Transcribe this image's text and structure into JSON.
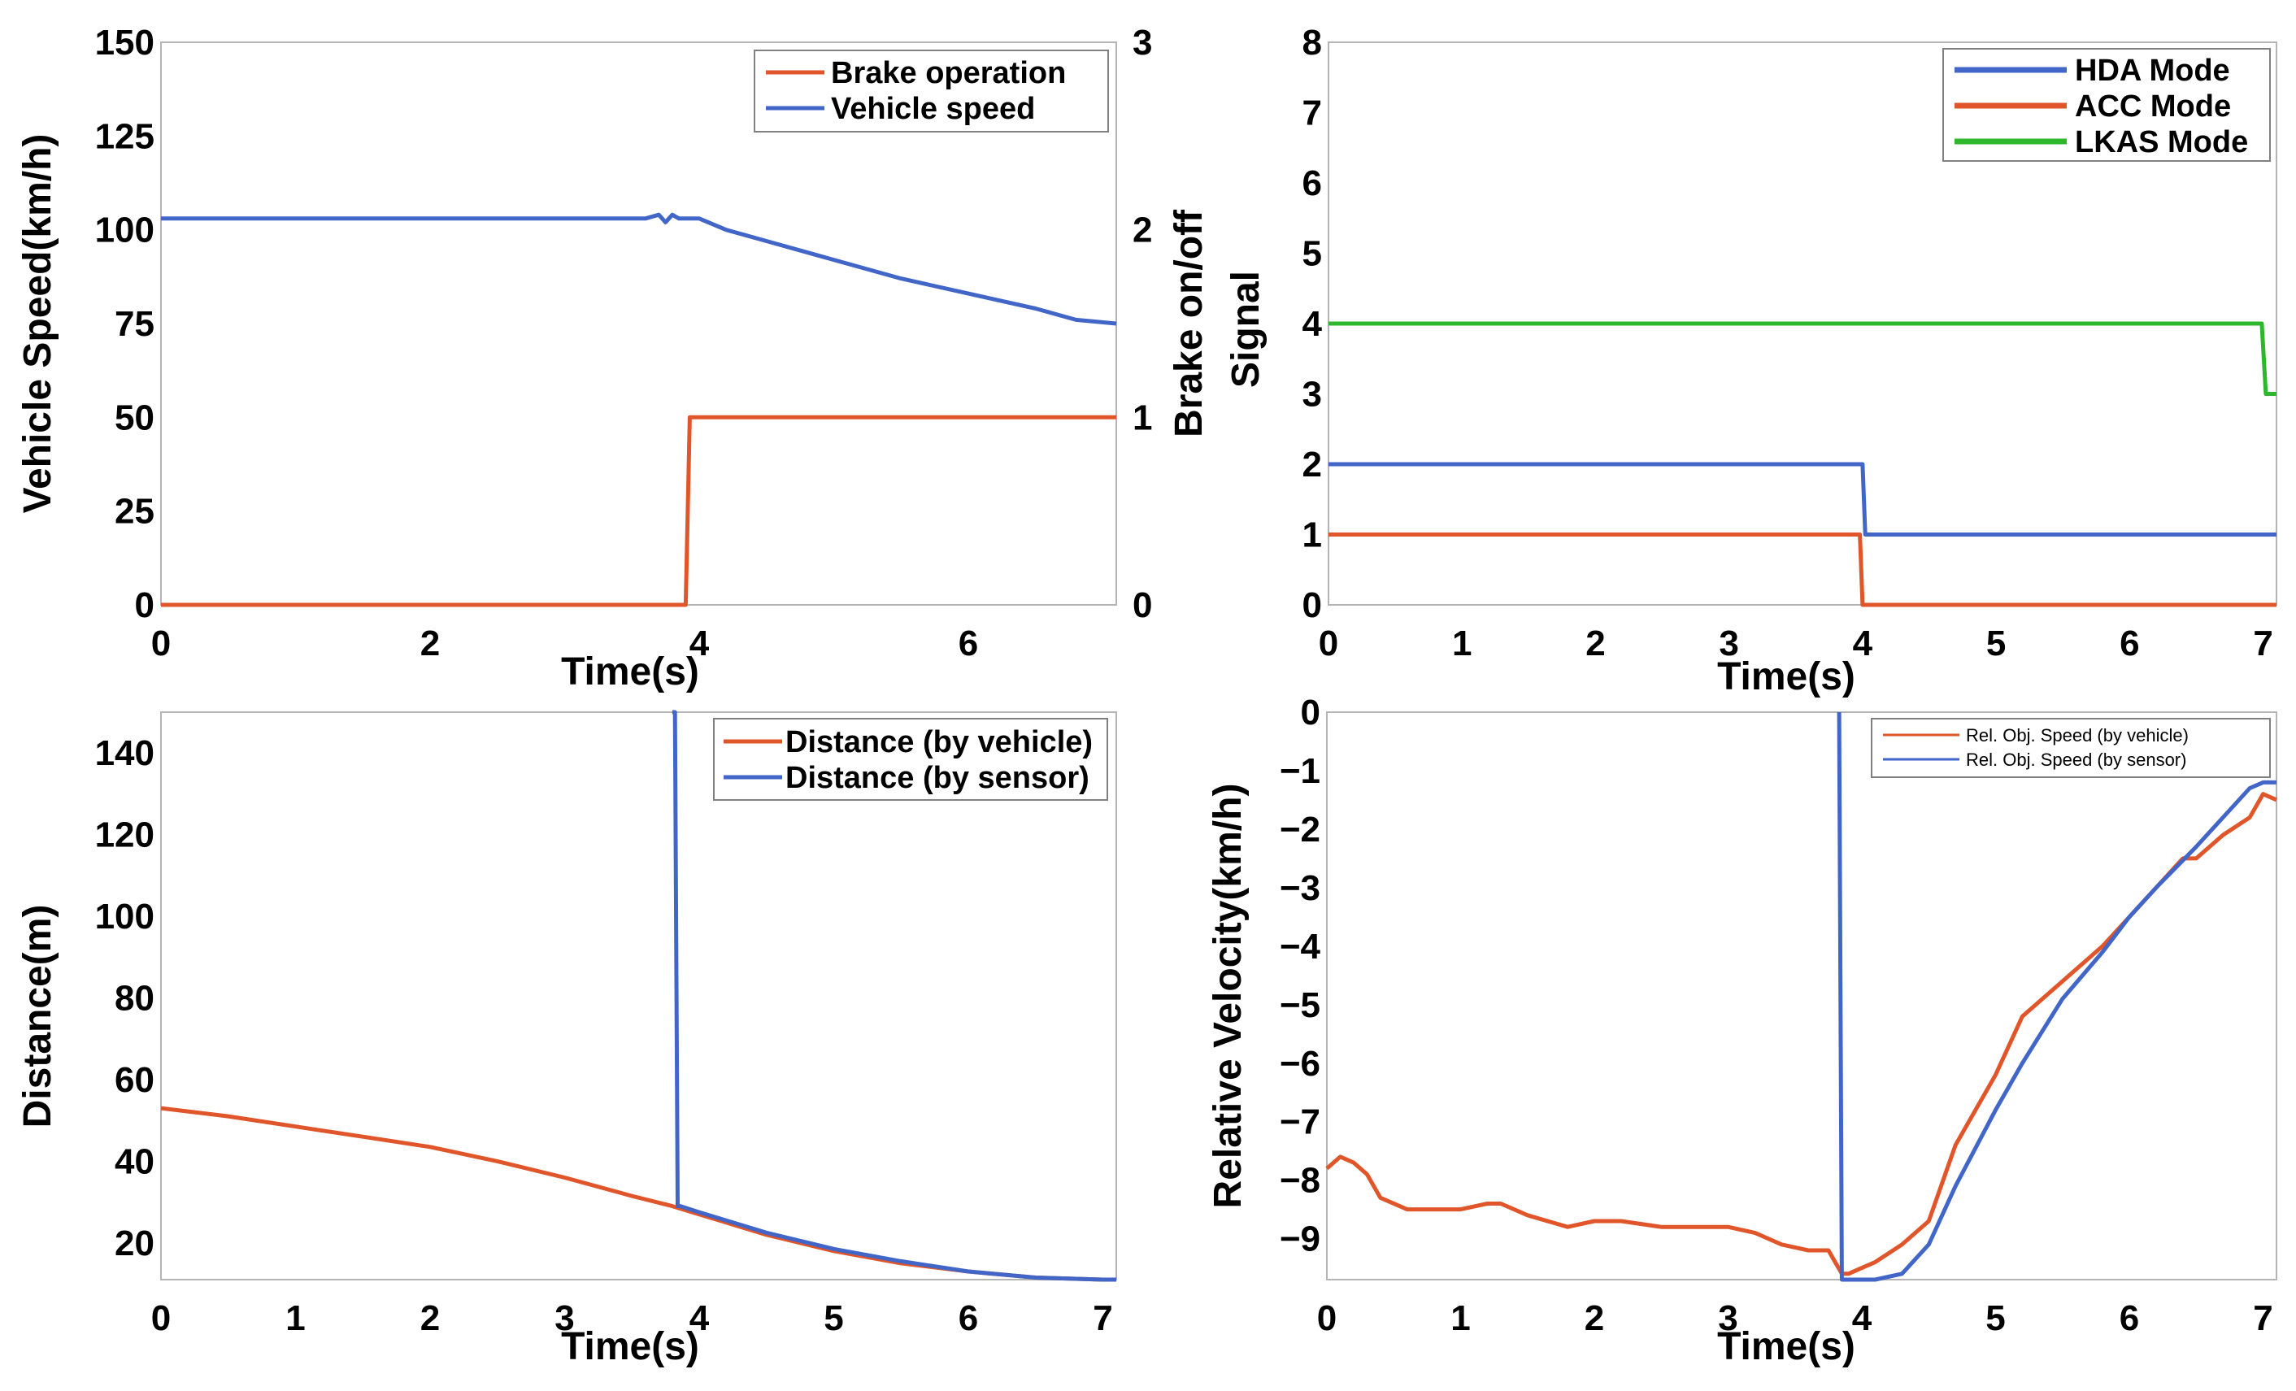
{
  "colors": {
    "orange": "#E0562A",
    "blue": "#4166C8",
    "green": "#2DB72D"
  },
  "chart_data": [
    {
      "type": "line",
      "title": "",
      "xlabel": "Time(s)",
      "ylabel": "Vehicle Speed(km/h)",
      "ylabel_right": "Brake on/off",
      "xlim": [
        0,
        7.1
      ],
      "ylim": [
        0,
        150
      ],
      "ylim_right": [
        0,
        3
      ],
      "xticks": [
        0,
        2,
        4,
        6
      ],
      "yticks": [
        0,
        25,
        50,
        75,
        100,
        125,
        150
      ],
      "yticks_right": [
        0,
        1,
        2,
        3
      ],
      "legend_position": "top-right",
      "series": [
        {
          "name": "Brake operation",
          "color": "orange",
          "axis": "right",
          "x": [
            0,
            3.9,
            3.9,
            3.93,
            7.1
          ],
          "y": [
            0,
            0,
            0,
            1,
            1
          ]
        },
        {
          "name": "Vehicle speed",
          "color": "blue",
          "axis": "left",
          "x": [
            0,
            1,
            2,
            3,
            3.6,
            3.7,
            3.75,
            3.8,
            3.85,
            3.9,
            4.0,
            4.2,
            4.5,
            5,
            5.5,
            6,
            6.5,
            6.8,
            7.1
          ],
          "y": [
            103,
            103,
            103,
            103,
            103,
            104,
            102,
            104,
            103,
            103,
            103,
            100,
            97,
            92,
            87,
            83,
            79,
            76,
            75
          ]
        }
      ]
    },
    {
      "type": "line",
      "title": "",
      "xlabel": "Time(s)",
      "ylabel": "Signal",
      "xlim": [
        0,
        7.1
      ],
      "ylim": [
        0,
        8
      ],
      "xticks": [
        0,
        1,
        2,
        3,
        4,
        5,
        6,
        7
      ],
      "yticks": [
        0,
        1,
        2,
        3,
        4,
        5,
        6,
        7,
        8
      ],
      "legend_position": "top-right",
      "series": [
        {
          "name": "HDA Mode",
          "color": "blue",
          "x": [
            0,
            4.0,
            4.02,
            7.1
          ],
          "y": [
            2,
            2,
            1,
            1
          ]
        },
        {
          "name": "ACC Mode",
          "color": "orange",
          "x": [
            0,
            3.98,
            4.0,
            7.1
          ],
          "y": [
            1,
            1,
            0,
            0
          ]
        },
        {
          "name": "LKAS Mode",
          "color": "green",
          "x": [
            0,
            6.99,
            7.02,
            7.1
          ],
          "y": [
            4,
            4,
            3,
            3
          ]
        }
      ]
    },
    {
      "type": "line",
      "title": "",
      "xlabel": "Time(s)",
      "ylabel": "Distance(m)",
      "xlim": [
        0,
        7.1
      ],
      "ylim": [
        11,
        150
      ],
      "xticks": [
        0,
        1,
        2,
        3,
        4,
        5,
        6,
        7
      ],
      "yticks": [
        20,
        40,
        60,
        80,
        100,
        120,
        140
      ],
      "legend_position": "top-right",
      "series": [
        {
          "name": "Distance (by vehicle)",
          "color": "orange",
          "x": [
            0,
            0.5,
            1,
            1.5,
            2,
            2.5,
            3,
            3.5,
            3.8,
            4,
            4.5,
            5,
            5.5,
            6,
            6.5,
            7,
            7.1
          ],
          "y": [
            53,
            51,
            48.5,
            46,
            43.5,
            40,
            36,
            31.5,
            29,
            27,
            22,
            18,
            15,
            13,
            11.5,
            11,
            11
          ]
        },
        {
          "name": "Distance (by sensor)",
          "color": "blue",
          "x": [
            3.8,
            3.82,
            3.84,
            3.86,
            4,
            4.5,
            5,
            5.5,
            6,
            6.5,
            7,
            7.1
          ],
          "y": [
            150,
            150,
            29,
            29,
            27.5,
            22.5,
            18.5,
            15.5,
            13,
            11.5,
            11,
            11
          ]
        }
      ]
    },
    {
      "type": "line",
      "title": "",
      "xlabel": "Time(s)",
      "ylabel": "Relative Velocity(km/h)",
      "xlim": [
        0,
        7.1
      ],
      "ylim": [
        -9.7,
        0
      ],
      "xticks": [
        0,
        1,
        2,
        3,
        4,
        5,
        6,
        7
      ],
      "yticks": [
        0,
        -1,
        -2,
        -3,
        -4,
        -5,
        -6,
        -7,
        -8,
        -9
      ],
      "ytick_labels": [
        "0",
        "−1",
        "−2",
        "−3",
        "−4",
        "−5",
        "−6",
        "−7",
        "−8",
        "−9"
      ],
      "legend_position": "top-right",
      "series": [
        {
          "name": "Rel. Obj. Speed (by vehicle)",
          "color": "orange",
          "x": [
            0,
            0.1,
            0.2,
            0.3,
            0.4,
            0.6,
            0.8,
            1.0,
            1.2,
            1.3,
            1.5,
            1.8,
            2.0,
            2.2,
            2.5,
            2.8,
            3.0,
            3.2,
            3.4,
            3.6,
            3.75,
            3.85,
            3.9,
            4.0,
            4.1,
            4.3,
            4.5,
            4.7,
            5.0,
            5.2,
            5.5,
            5.8,
            6.0,
            6.2,
            6.4,
            6.5,
            6.7,
            6.9,
            7.0,
            7.1
          ],
          "y": [
            -7.8,
            -7.6,
            -7.7,
            -7.9,
            -8.3,
            -8.5,
            -8.5,
            -8.5,
            -8.4,
            -8.4,
            -8.6,
            -8.8,
            -8.7,
            -8.7,
            -8.8,
            -8.8,
            -8.8,
            -8.9,
            -9.1,
            -9.2,
            -9.2,
            -9.6,
            -9.6,
            -9.5,
            -9.4,
            -9.1,
            -8.7,
            -7.4,
            -6.2,
            -5.2,
            -4.6,
            -4.0,
            -3.5,
            -3.0,
            -2.5,
            -2.5,
            -2.1,
            -1.8,
            -1.4,
            -1.5
          ]
        },
        {
          "name": "Rel. Obj. Speed (by sensor)",
          "color": "blue",
          "x": [
            3.83,
            3.85,
            3.88,
            3.95,
            4.1,
            4.3,
            4.5,
            4.7,
            5.0,
            5.2,
            5.5,
            5.8,
            6.0,
            6.2,
            6.5,
            6.7,
            6.9,
            7.0,
            7.1
          ],
          "y": [
            0,
            -9.7,
            -9.7,
            -9.7,
            -9.7,
            -9.6,
            -9.1,
            -8.1,
            -6.8,
            -6.0,
            -4.9,
            -4.1,
            -3.5,
            -3.0,
            -2.3,
            -1.8,
            -1.3,
            -1.2,
            -1.2
          ]
        }
      ]
    }
  ]
}
